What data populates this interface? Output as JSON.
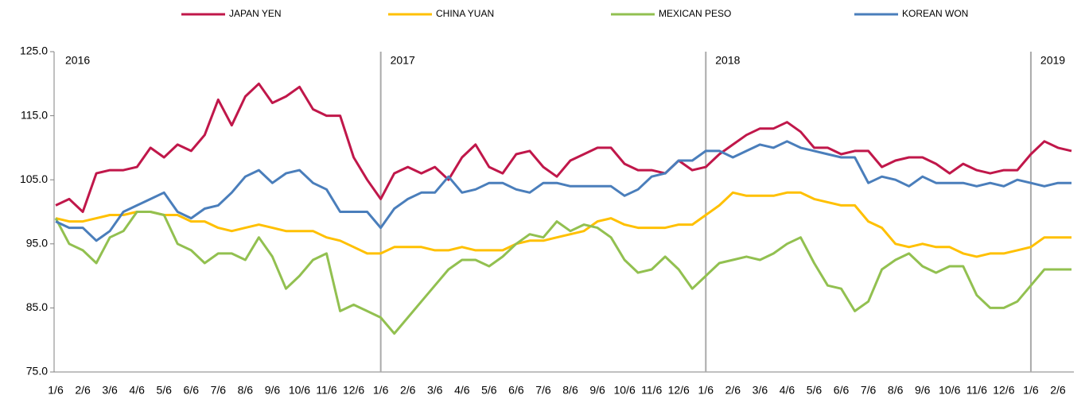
{
  "chart_data": {
    "type": "line",
    "categories": [
      "1/6",
      null,
      "2/6",
      null,
      "3/6",
      null,
      "4/6",
      null,
      "5/6",
      null,
      "6/6",
      null,
      "7/6",
      null,
      "8/6",
      null,
      "9/6",
      null,
      "10/6",
      null,
      "11/6",
      null,
      "12/6",
      null,
      "1/6",
      null,
      "2/6",
      null,
      "3/6",
      null,
      "4/6",
      null,
      "5/6",
      null,
      "6/6",
      null,
      "7/6",
      null,
      "8/6",
      null,
      "9/6",
      null,
      "10/6",
      null,
      "11/6",
      null,
      "12/6",
      null,
      "1/6",
      null,
      "2/6",
      null,
      "3/6",
      null,
      "4/6",
      null,
      "5/6",
      null,
      "6/6",
      null,
      "7/6",
      null,
      "8/6",
      null,
      "9/6",
      null,
      "10/6",
      null,
      "11/6",
      null,
      "12/6",
      null,
      "1/6",
      null,
      "2/6",
      null
    ],
    "series": [
      {
        "name": "JAPAN YEN",
        "color": "#c0174a",
        "values": [
          101,
          102,
          100,
          106,
          106.5,
          106.5,
          107,
          110,
          108.5,
          110.5,
          109.5,
          112,
          117.5,
          113.5,
          118,
          120,
          117,
          118,
          119.5,
          116,
          115,
          115,
          108.5,
          105,
          102,
          106,
          107,
          106,
          107,
          105,
          108.5,
          110.5,
          107,
          106,
          109,
          109.5,
          107,
          105.5,
          108,
          109,
          110,
          110,
          107.5,
          106.5,
          106.5,
          106,
          108,
          106.5,
          107,
          109,
          110.5,
          112,
          113,
          113,
          114,
          112.5,
          110,
          110,
          109,
          109.5,
          109.5,
          107,
          108,
          108.5,
          108.5,
          107.5,
          106,
          107.5,
          106.5,
          106,
          106.5,
          106.5,
          109,
          111,
          110,
          109.5
        ]
      },
      {
        "name": "CHINA YUAN",
        "color": "#ffc000",
        "values": [
          99,
          98.5,
          98.5,
          99,
          99.5,
          99.5,
          100,
          100,
          99.5,
          99.5,
          98.5,
          98.5,
          97.5,
          97,
          97.5,
          98,
          97.5,
          97,
          97,
          97,
          96,
          95.5,
          94.5,
          93.5,
          93.5,
          94.5,
          94.5,
          94.5,
          94,
          94,
          94.5,
          94,
          94,
          94,
          95,
          95.5,
          95.5,
          96,
          96.5,
          97,
          98.5,
          99,
          98,
          97.5,
          97.5,
          97.5,
          98,
          98,
          99.5,
          101,
          103,
          102.5,
          102.5,
          102.5,
          103,
          103,
          102,
          101.5,
          101,
          101,
          98.5,
          97.5,
          95,
          94.5,
          95,
          94.5,
          94.5,
          93.5,
          93,
          93.5,
          93.5,
          94,
          94.5,
          96,
          96,
          96
        ]
      },
      {
        "name": "MEXICAN PESO",
        "color": "#92c050",
        "values": [
          99,
          95,
          94,
          92,
          96,
          97,
          100,
          100,
          99.5,
          95,
          94,
          92,
          93.5,
          93.5,
          92.5,
          96,
          93,
          88,
          90,
          92.5,
          93.5,
          84.5,
          85.5,
          84.5,
          83.5,
          81,
          83.5,
          86,
          88.5,
          91,
          92.5,
          92.5,
          91.5,
          93,
          95,
          96.5,
          96,
          98.5,
          97,
          98,
          97.5,
          96,
          92.5,
          90.5,
          91,
          93,
          91,
          88,
          90,
          92,
          92.5,
          93,
          92.5,
          93.5,
          95,
          96,
          92,
          88.5,
          88,
          84.5,
          86,
          91,
          92.5,
          93.5,
          91.5,
          90.5,
          91.5,
          91.5,
          87,
          85,
          85,
          86,
          88.5,
          91,
          91,
          91
        ]
      },
      {
        "name": "KOREAN WON",
        "color": "#4a7ebb",
        "values": [
          98.5,
          97.5,
          97.5,
          95.5,
          97,
          100,
          101,
          102,
          103,
          100,
          99,
          100.5,
          101,
          103,
          105.5,
          106.5,
          104.5,
          106,
          106.5,
          104.5,
          103.5,
          100,
          100,
          100,
          97.5,
          100.5,
          102,
          103,
          103,
          105.5,
          103,
          103.5,
          104.5,
          104.5,
          103.5,
          103,
          104.5,
          104.5,
          104,
          104,
          104,
          104,
          102.5,
          103.5,
          105.5,
          106,
          108,
          108,
          109.5,
          109.5,
          108.5,
          109.5,
          110.5,
          110,
          111,
          110,
          109.5,
          109,
          108.5,
          108.5,
          104.5,
          105.5,
          105,
          104,
          105.5,
          104.5,
          104.5,
          104.5,
          104,
          104.5,
          104,
          105,
          104.5,
          104,
          104.5,
          104.5
        ]
      }
    ],
    "year_markers": [
      {
        "label": "2016",
        "index": 0
      },
      {
        "label": "2017",
        "index": 24
      },
      {
        "label": "2018",
        "index": 48
      },
      {
        "label": "2019",
        "index": 72
      }
    ],
    "ylim": [
      75,
      125
    ],
    "yticks": [
      {
        "value": 75,
        "label": "75.0"
      },
      {
        "value": 85,
        "label": "85.0"
      },
      {
        "value": 95,
        "label": "95.0"
      },
      {
        "value": 105,
        "label": "105.0"
      },
      {
        "value": 115,
        "label": "115.0"
      },
      {
        "value": 125,
        "label": "125.0"
      }
    ],
    "grid": false,
    "legend": "top"
  }
}
